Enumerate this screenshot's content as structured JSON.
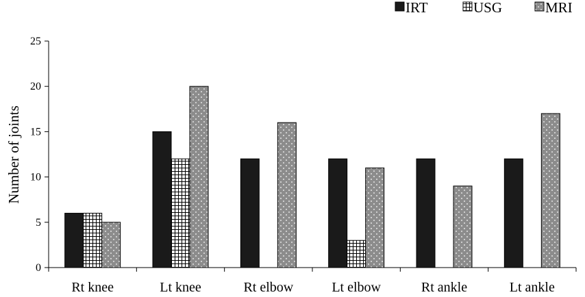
{
  "chart_data": {
    "type": "bar",
    "categories": [
      "Rt knee",
      "Lt knee",
      "Rt elbow",
      "Lt elbow",
      "Rt ankle",
      "Lt ankle"
    ],
    "series": [
      {
        "name": "IRT",
        "values": [
          6,
          15,
          12,
          12,
          12,
          12
        ],
        "color": "#1a1a1a",
        "pattern": "solid"
      },
      {
        "name": "USG",
        "values": [
          6,
          12,
          0,
          3,
          0,
          0
        ],
        "color": "#ffffff",
        "pattern": "grid"
      },
      {
        "name": "MRI",
        "values": [
          5,
          20,
          16,
          11,
          9,
          17
        ],
        "color": "#8c8c8c",
        "pattern": "dots"
      }
    ],
    "ylabel": "Number of joints",
    "ylim": [
      0,
      25
    ],
    "yticks": [
      0,
      5,
      10,
      15,
      20,
      25
    ],
    "legend_position": "top-right",
    "grid": false
  }
}
